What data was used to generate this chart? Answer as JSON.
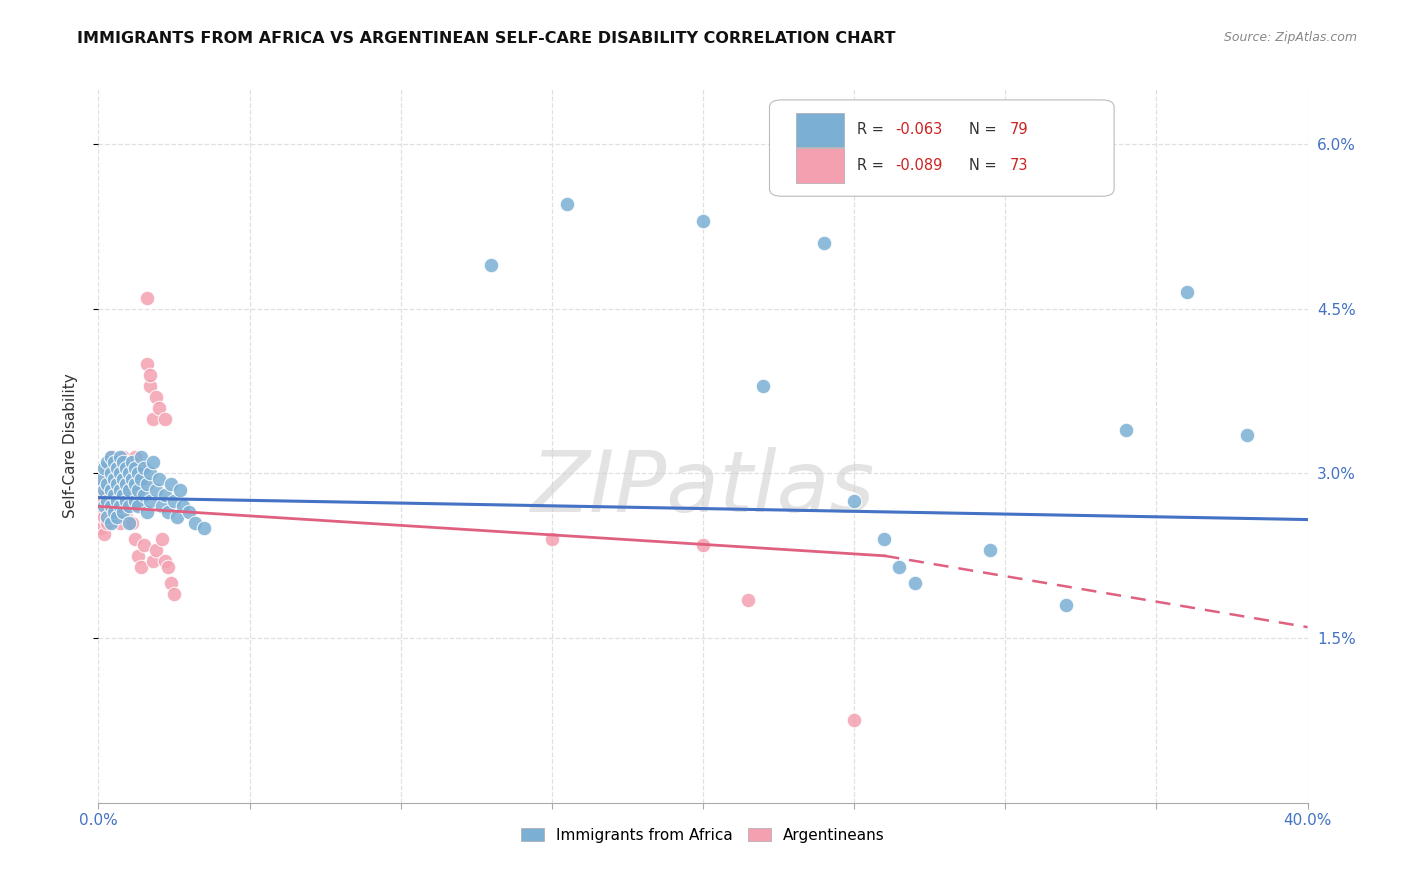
{
  "title": "IMMIGRANTS FROM AFRICA VS ARGENTINEAN SELF-CARE DISABILITY CORRELATION CHART",
  "source": "Source: ZipAtlas.com",
  "ylabel": "Self-Care Disability",
  "yticks": [
    "1.5%",
    "3.0%",
    "4.5%",
    "6.0%"
  ],
  "ytick_vals": [
    0.015,
    0.03,
    0.045,
    0.06
  ],
  "xlim": [
    0.0,
    0.4
  ],
  "ylim": [
    0.0,
    0.065
  ],
  "legend_blue_r": "R = -0.063",
  "legend_blue_n": "N = 79",
  "legend_pink_r": "R = -0.089",
  "legend_pink_n": "N = 73",
  "blue_color": "#7BAFD4",
  "pink_color": "#F4A0B0",
  "blue_line_color": "#4472C4",
  "pink_line_color": "#E06080",
  "blue_scatter": [
    [
      0.001,
      0.0295
    ],
    [
      0.002,
      0.0285
    ],
    [
      0.002,
      0.027
    ],
    [
      0.002,
      0.0305
    ],
    [
      0.003,
      0.029
    ],
    [
      0.003,
      0.0275
    ],
    [
      0.003,
      0.026
    ],
    [
      0.003,
      0.031
    ],
    [
      0.004,
      0.03
    ],
    [
      0.004,
      0.0285
    ],
    [
      0.004,
      0.027
    ],
    [
      0.004,
      0.0255
    ],
    [
      0.004,
      0.0315
    ],
    [
      0.005,
      0.0295
    ],
    [
      0.005,
      0.028
    ],
    [
      0.005,
      0.0265
    ],
    [
      0.005,
      0.031
    ],
    [
      0.006,
      0.0305
    ],
    [
      0.006,
      0.029
    ],
    [
      0.006,
      0.0275
    ],
    [
      0.006,
      0.026
    ],
    [
      0.007,
      0.03
    ],
    [
      0.007,
      0.0285
    ],
    [
      0.007,
      0.027
    ],
    [
      0.007,
      0.0315
    ],
    [
      0.008,
      0.031
    ],
    [
      0.008,
      0.0295
    ],
    [
      0.008,
      0.028
    ],
    [
      0.008,
      0.0265
    ],
    [
      0.009,
      0.0305
    ],
    [
      0.009,
      0.029
    ],
    [
      0.009,
      0.0275
    ],
    [
      0.01,
      0.03
    ],
    [
      0.01,
      0.0285
    ],
    [
      0.01,
      0.027
    ],
    [
      0.01,
      0.0255
    ],
    [
      0.011,
      0.031
    ],
    [
      0.011,
      0.0295
    ],
    [
      0.012,
      0.0305
    ],
    [
      0.012,
      0.029
    ],
    [
      0.012,
      0.0275
    ],
    [
      0.013,
      0.03
    ],
    [
      0.013,
      0.0285
    ],
    [
      0.013,
      0.027
    ],
    [
      0.014,
      0.0315
    ],
    [
      0.014,
      0.0295
    ],
    [
      0.015,
      0.0305
    ],
    [
      0.015,
      0.028
    ],
    [
      0.016,
      0.029
    ],
    [
      0.016,
      0.0265
    ],
    [
      0.017,
      0.03
    ],
    [
      0.017,
      0.0275
    ],
    [
      0.018,
      0.031
    ],
    [
      0.019,
      0.0285
    ],
    [
      0.02,
      0.0295
    ],
    [
      0.021,
      0.027
    ],
    [
      0.022,
      0.028
    ],
    [
      0.023,
      0.0265
    ],
    [
      0.024,
      0.029
    ],
    [
      0.025,
      0.0275
    ],
    [
      0.026,
      0.026
    ],
    [
      0.027,
      0.0285
    ],
    [
      0.028,
      0.027
    ],
    [
      0.03,
      0.0265
    ],
    [
      0.032,
      0.0255
    ],
    [
      0.035,
      0.025
    ],
    [
      0.13,
      0.049
    ],
    [
      0.155,
      0.0545
    ],
    [
      0.2,
      0.053
    ],
    [
      0.22,
      0.038
    ],
    [
      0.24,
      0.051
    ],
    [
      0.25,
      0.0275
    ],
    [
      0.26,
      0.024
    ],
    [
      0.265,
      0.0215
    ],
    [
      0.27,
      0.02
    ],
    [
      0.295,
      0.023
    ],
    [
      0.32,
      0.018
    ],
    [
      0.34,
      0.034
    ],
    [
      0.36,
      0.0465
    ],
    [
      0.38,
      0.0335
    ]
  ],
  "pink_scatter": [
    [
      0.001,
      0.028
    ],
    [
      0.001,
      0.0265
    ],
    [
      0.001,
      0.025
    ],
    [
      0.002,
      0.029
    ],
    [
      0.002,
      0.0275
    ],
    [
      0.002,
      0.026
    ],
    [
      0.002,
      0.0245
    ],
    [
      0.003,
      0.03
    ],
    [
      0.003,
      0.0285
    ],
    [
      0.003,
      0.027
    ],
    [
      0.003,
      0.0255
    ],
    [
      0.003,
      0.0305
    ],
    [
      0.004,
      0.0295
    ],
    [
      0.004,
      0.028
    ],
    [
      0.004,
      0.0265
    ],
    [
      0.004,
      0.0315
    ],
    [
      0.005,
      0.0305
    ],
    [
      0.005,
      0.029
    ],
    [
      0.005,
      0.0275
    ],
    [
      0.005,
      0.026
    ],
    [
      0.006,
      0.031
    ],
    [
      0.006,
      0.0295
    ],
    [
      0.006,
      0.028
    ],
    [
      0.006,
      0.0265
    ],
    [
      0.007,
      0.03
    ],
    [
      0.007,
      0.0285
    ],
    [
      0.007,
      0.027
    ],
    [
      0.007,
      0.0255
    ],
    [
      0.008,
      0.0315
    ],
    [
      0.008,
      0.03
    ],
    [
      0.008,
      0.0285
    ],
    [
      0.008,
      0.027
    ],
    [
      0.009,
      0.0305
    ],
    [
      0.009,
      0.029
    ],
    [
      0.009,
      0.0275
    ],
    [
      0.009,
      0.026
    ],
    [
      0.01,
      0.031
    ],
    [
      0.01,
      0.0295
    ],
    [
      0.01,
      0.028
    ],
    [
      0.011,
      0.03
    ],
    [
      0.011,
      0.0285
    ],
    [
      0.011,
      0.027
    ],
    [
      0.011,
      0.0255
    ],
    [
      0.012,
      0.0315
    ],
    [
      0.012,
      0.03
    ],
    [
      0.012,
      0.024
    ],
    [
      0.013,
      0.029
    ],
    [
      0.013,
      0.0275
    ],
    [
      0.013,
      0.0225
    ],
    [
      0.014,
      0.0305
    ],
    [
      0.014,
      0.029
    ],
    [
      0.014,
      0.0215
    ],
    [
      0.015,
      0.0295
    ],
    [
      0.015,
      0.0235
    ],
    [
      0.016,
      0.046
    ],
    [
      0.016,
      0.04
    ],
    [
      0.017,
      0.038
    ],
    [
      0.017,
      0.039
    ],
    [
      0.018,
      0.035
    ],
    [
      0.018,
      0.022
    ],
    [
      0.019,
      0.037
    ],
    [
      0.019,
      0.023
    ],
    [
      0.02,
      0.036
    ],
    [
      0.021,
      0.024
    ],
    [
      0.022,
      0.035
    ],
    [
      0.022,
      0.022
    ],
    [
      0.023,
      0.0215
    ],
    [
      0.024,
      0.02
    ],
    [
      0.025,
      0.019
    ],
    [
      0.15,
      0.024
    ],
    [
      0.2,
      0.0235
    ],
    [
      0.215,
      0.0185
    ],
    [
      0.25,
      0.0075
    ]
  ],
  "blue_trend": [
    0.0,
    0.0278,
    0.4,
    0.0258
  ],
  "pink_trend_solid": [
    0.0,
    0.027,
    0.26,
    0.0225
  ],
  "pink_trend_dash": [
    0.26,
    0.0225,
    0.4,
    0.016
  ],
  "watermark_text": "ZIPatlas",
  "background_color": "#ffffff",
  "grid_color": "#e0e0e0"
}
